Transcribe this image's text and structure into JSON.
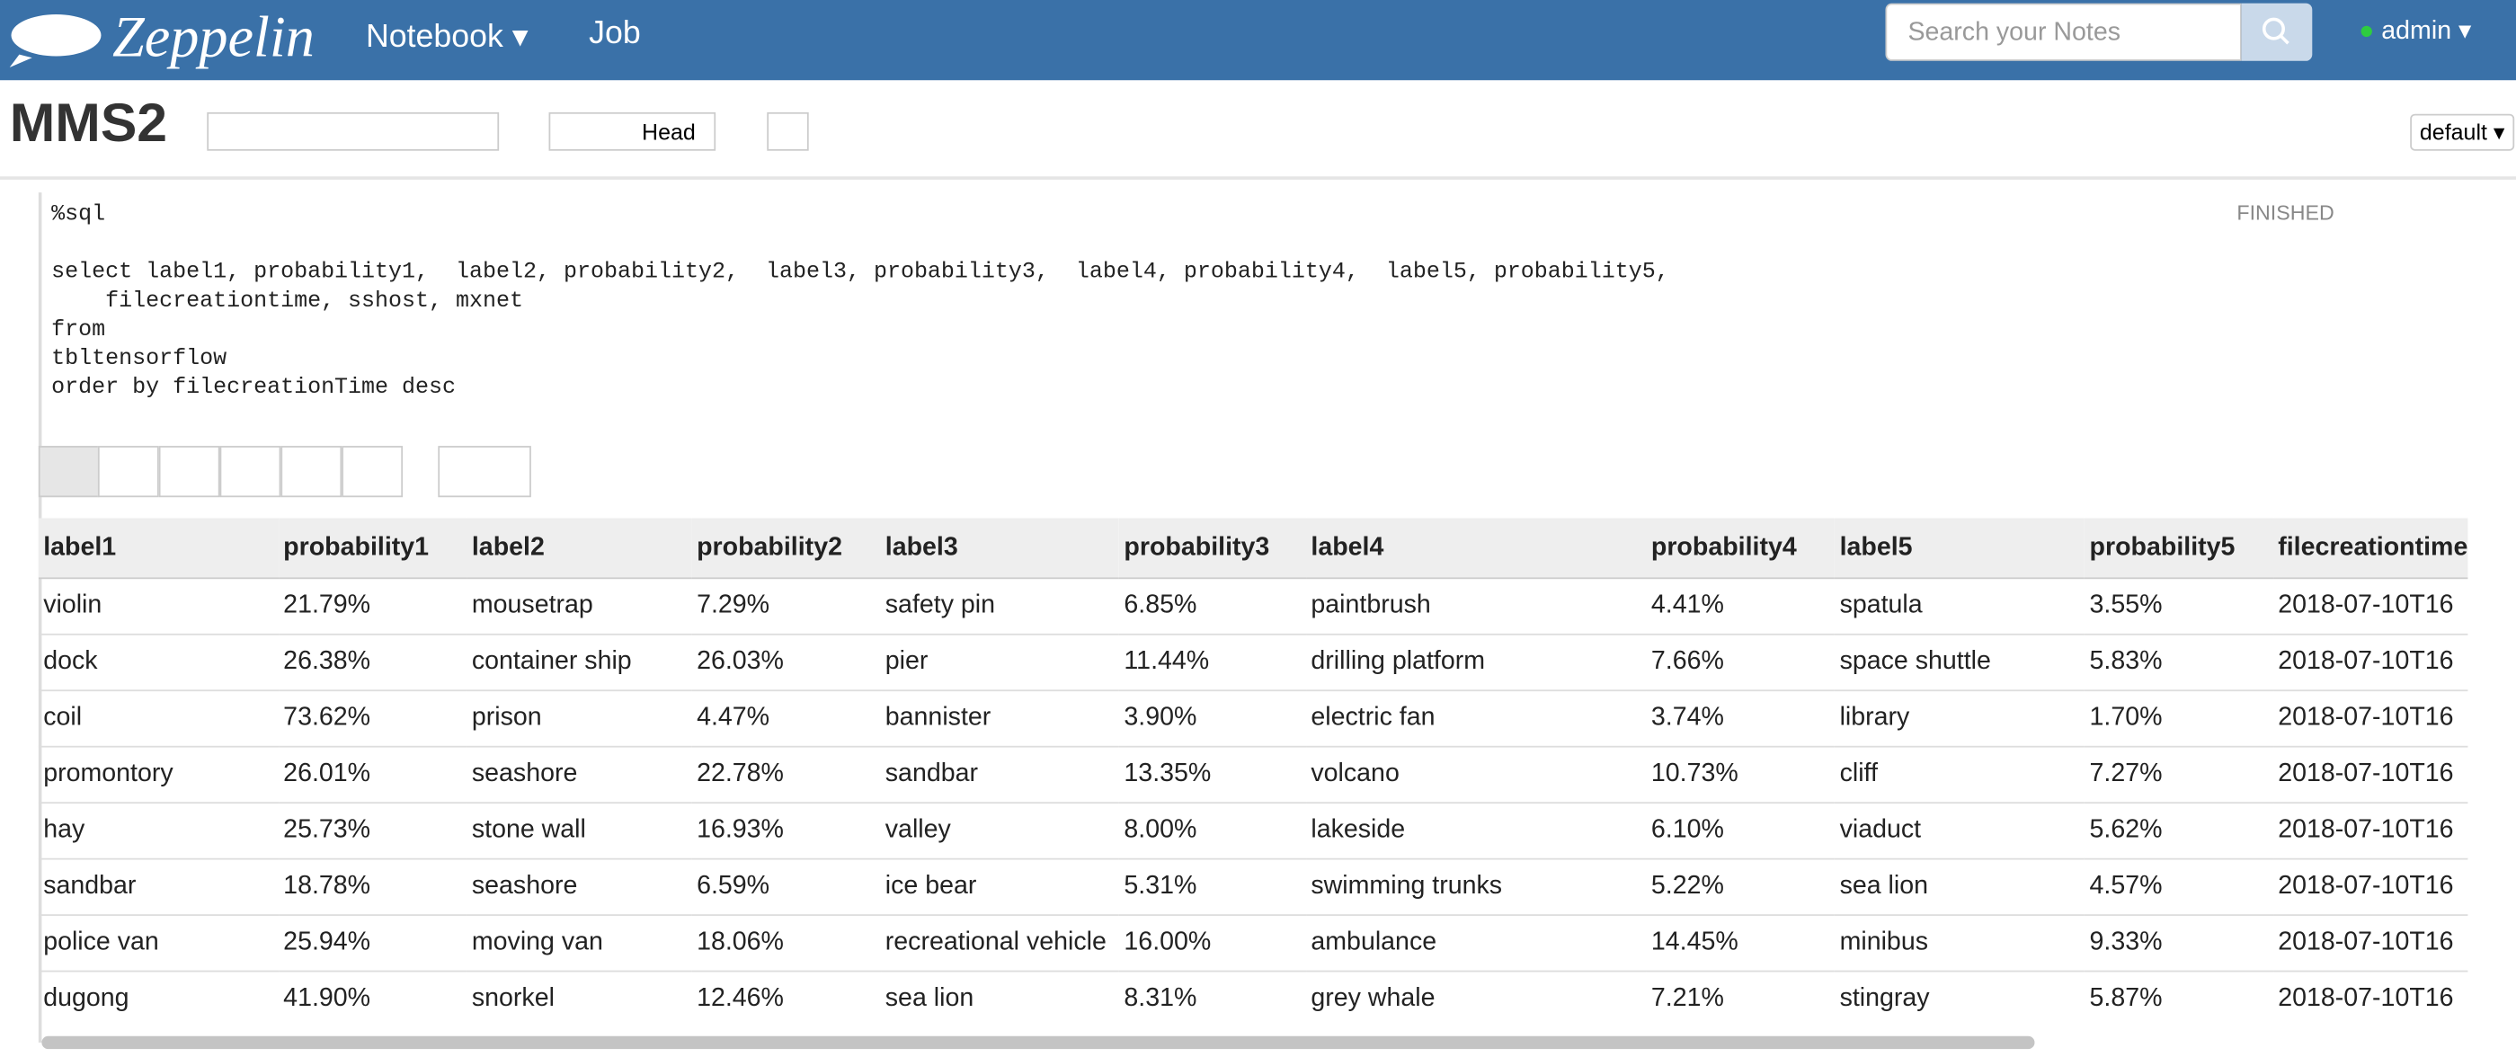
{
  "navbar": {
    "brand": "Zeppelin",
    "menu": [
      "Notebook",
      "Job"
    ],
    "search_placeholder": "Search your Notes",
    "user": "admin"
  },
  "note": {
    "title": "MMS2",
    "head_button": "Head",
    "interpreter": "default"
  },
  "paragraph": {
    "status": "FINISHED",
    "code": [
      "%sql",
      "",
      "select label1, probability1,  label2, probability2,  label3, probability3,  label4, probability4,  label5, probability5,",
      "    filecreationtime, sshost, mxnet",
      "from",
      "tbltensorflow",
      "order by filecreationTime desc"
    ]
  },
  "table": {
    "columns": [
      "label1",
      "probability1",
      "label2",
      "probability2",
      "label3",
      "probability3",
      "label4",
      "probability4",
      "label5",
      "probability5",
      "filecreationtime"
    ],
    "rows": [
      [
        "violin",
        "21.79%",
        "mousetrap",
        "7.29%",
        "safety pin",
        "6.85%",
        "paintbrush",
        "4.41%",
        "spatula",
        "3.55%",
        "2018-07-10T16"
      ],
      [
        "dock",
        "26.38%",
        "container ship",
        "26.03%",
        "pier",
        "11.44%",
        "drilling platform",
        "7.66%",
        "space shuttle",
        "5.83%",
        "2018-07-10T16"
      ],
      [
        "coil",
        "73.62%",
        "prison",
        "4.47%",
        "bannister",
        "3.90%",
        "electric fan",
        "3.74%",
        "library",
        "1.70%",
        "2018-07-10T16"
      ],
      [
        "promontory",
        "26.01%",
        "seashore",
        "22.78%",
        "sandbar",
        "13.35%",
        "volcano",
        "10.73%",
        "cliff",
        "7.27%",
        "2018-07-10T16"
      ],
      [
        "hay",
        "25.73%",
        "stone wall",
        "16.93%",
        "valley",
        "8.00%",
        "lakeside",
        "6.10%",
        "viaduct",
        "5.62%",
        "2018-07-10T16"
      ],
      [
        "sandbar",
        "18.78%",
        "seashore",
        "6.59%",
        "ice bear",
        "5.31%",
        "swimming trunks",
        "5.22%",
        "sea lion",
        "4.57%",
        "2018-07-10T16"
      ],
      [
        "police van",
        "25.94%",
        "moving van",
        "18.06%",
        "recreational vehicle",
        "16.00%",
        "ambulance",
        "14.45%",
        "minibus",
        "9.33%",
        "2018-07-10T16"
      ],
      [
        "dugong",
        "41.90%",
        "snorkel",
        "12.46%",
        "sea lion",
        "8.31%",
        "grey whale",
        "7.21%",
        "stingray",
        "5.87%",
        "2018-07-10T16"
      ]
    ]
  }
}
